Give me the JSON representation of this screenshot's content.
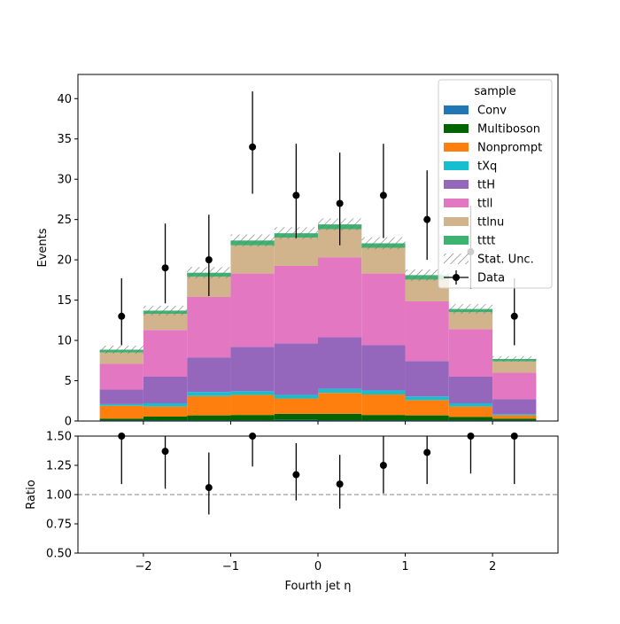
{
  "chart_data": [
    {
      "type": "bar",
      "panel": "main",
      "stacked": true,
      "bin_edges": [
        -2.5,
        -2.0,
        -1.5,
        -1.0,
        -0.5,
        0.0,
        0.5,
        1.0,
        1.5,
        2.0,
        2.5
      ],
      "xlabel": "Fourth jet  η",
      "ylabel": "Events",
      "xlim": [
        -2.75,
        2.75
      ],
      "ylim": [
        0,
        43
      ],
      "xticks": [
        -2,
        -1,
        0,
        1,
        2
      ],
      "xtick_labels": [
        "−2",
        "−1",
        "0",
        "1",
        "2"
      ],
      "yticks": [
        0,
        5,
        10,
        15,
        20,
        25,
        30,
        35,
        40
      ],
      "ytick_labels": [
        "0",
        "5",
        "10",
        "15",
        "20",
        "25",
        "30",
        "35",
        "40"
      ],
      "legend": {
        "title": "sample",
        "placement": "top-right",
        "stat_label": "Stat. Unc.",
        "data_label": "Data"
      },
      "series": [
        {
          "name": "Conv",
          "color": "#1f77b4",
          "values": [
            0.1,
            0.1,
            0.1,
            0.1,
            0.15,
            0.1,
            0.1,
            0.1,
            0.1,
            0.1
          ]
        },
        {
          "name": "Multiboson",
          "color": "#006400",
          "values": [
            0.2,
            0.45,
            0.6,
            0.65,
            0.75,
            0.8,
            0.65,
            0.6,
            0.4,
            0.2
          ]
        },
        {
          "name": "Nonprompt",
          "color": "#ff7f0e",
          "values": [
            1.6,
            1.25,
            2.4,
            2.5,
            1.9,
            2.6,
            2.55,
            1.9,
            1.3,
            0.4
          ]
        },
        {
          "name": "tXq",
          "color": "#17becf",
          "values": [
            0.2,
            0.4,
            0.5,
            0.45,
            0.45,
            0.5,
            0.5,
            0.45,
            0.4,
            0.15
          ]
        },
        {
          "name": "ttH",
          "color": "#9467bd",
          "values": [
            1.8,
            3.3,
            4.3,
            5.5,
            6.4,
            6.4,
            5.6,
            4.4,
            3.3,
            1.85
          ]
        },
        {
          "name": "ttll",
          "color": "#e377c2",
          "values": [
            3.2,
            5.8,
            7.5,
            9.1,
            9.6,
            9.9,
            8.9,
            7.4,
            5.9,
            3.3
          ]
        },
        {
          "name": "ttlnu",
          "color": "#d2b48c",
          "values": [
            1.4,
            2.0,
            2.5,
            3.5,
            3.5,
            3.5,
            3.2,
            2.7,
            2.1,
            1.4
          ]
        },
        {
          "name": "tttt",
          "color": "#3cb371",
          "values": [
            0.35,
            0.4,
            0.5,
            0.6,
            0.55,
            0.6,
            0.55,
            0.55,
            0.4,
            0.3
          ]
        }
      ],
      "stat_unc": [
        0.5,
        0.6,
        0.7,
        0.75,
        0.75,
        0.75,
        0.75,
        0.7,
        0.6,
        0.35
      ],
      "data": {
        "name": "Data",
        "x": [
          -2.25,
          -1.75,
          -1.25,
          -0.75,
          -0.25,
          0.25,
          0.75,
          1.25,
          1.75,
          2.25
        ],
        "y": [
          13,
          19,
          20,
          34,
          28,
          27,
          28,
          25,
          21,
          13
        ],
        "yerr_low": [
          3.6,
          4.4,
          4.5,
          5.8,
          5.3,
          5.2,
          5.3,
          5.0,
          4.6,
          3.6
        ],
        "yerr_high": [
          4.7,
          5.5,
          5.6,
          6.9,
          6.4,
          6.3,
          6.4,
          6.1,
          5.7,
          4.7
        ]
      }
    },
    {
      "type": "scatter",
      "panel": "ratio",
      "xlabel": "Fourth jet  η",
      "ylabel": "Ratio",
      "xlim": [
        -2.75,
        2.75
      ],
      "ylim": [
        0.5,
        1.5
      ],
      "xticks": [
        -2,
        -1,
        0,
        1,
        2
      ],
      "xtick_labels": [
        "−2",
        "−1",
        "0",
        "1",
        "2"
      ],
      "yticks": [
        0.5,
        0.75,
        1.0,
        1.25,
        1.5
      ],
      "ytick_labels": [
        "0.50",
        "0.75",
        "1.00",
        "1.25",
        "1.50"
      ],
      "reference_line": 1.0,
      "x": [
        -2.25,
        -1.75,
        -1.25,
        -0.75,
        -0.25,
        0.25,
        0.75,
        1.25,
        1.75,
        2.25
      ],
      "y": [
        1.5,
        1.37,
        1.06,
        1.5,
        1.17,
        1.09,
        1.25,
        1.36,
        1.5,
        1.5
      ],
      "yerr_low": [
        0.41,
        0.32,
        0.23,
        0.26,
        0.22,
        0.21,
        0.24,
        0.27,
        0.32,
        0.41
      ],
      "yerr_high": [
        0.41,
        0.32,
        0.3,
        0.26,
        0.27,
        0.25,
        0.28,
        0.27,
        0.32,
        0.41
      ]
    }
  ]
}
